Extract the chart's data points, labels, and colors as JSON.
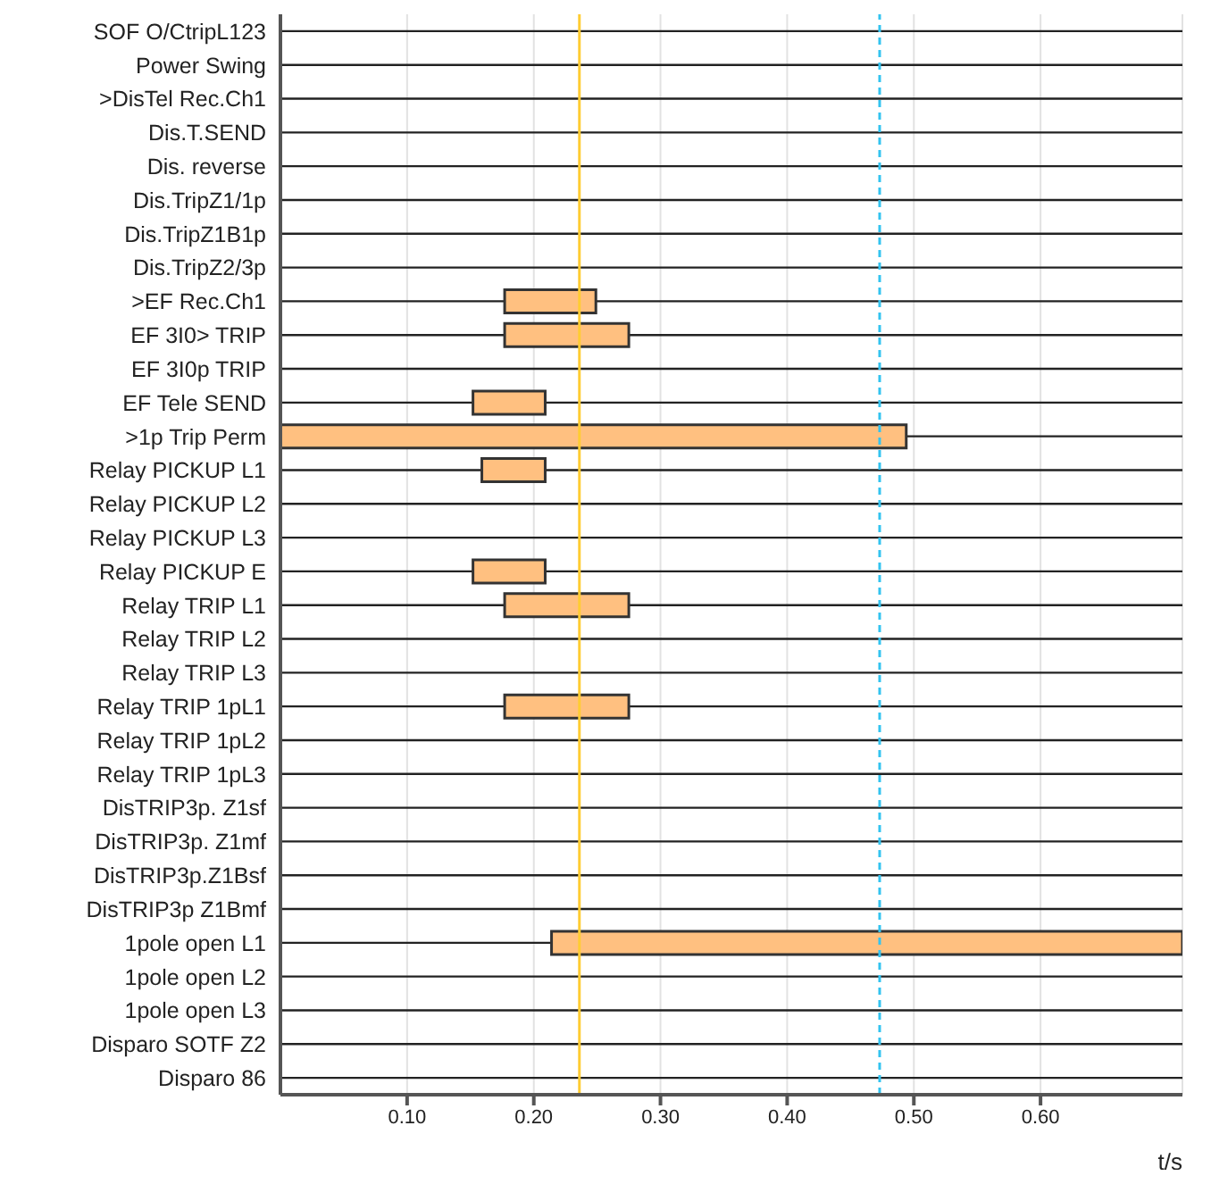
{
  "chart_data": {
    "type": "bar",
    "orientation": "horizontal",
    "xlabel": "t/s",
    "categories": [
      "SOF O/CtripL123",
      "Power Swing",
      ">DisTel Rec.Ch1",
      "Dis.T.SEND",
      "Dis. reverse",
      "Dis.TripZ1/1p",
      "Dis.TripZ1B1p",
      "Dis.TripZ2/3p",
      ">EF Rec.Ch1",
      "EF 3I0> TRIP",
      "EF 3I0p TRIP",
      "EF Tele SEND",
      ">1p Trip Perm",
      "Relay PICKUP L1",
      "Relay PICKUP L2",
      "Relay PICKUP L3",
      "Relay PICKUP E",
      "Relay TRIP L1",
      "Relay TRIP L2",
      "Relay TRIP L3",
      "Relay TRIP 1pL1",
      "Relay TRIP 1pL2",
      "Relay TRIP 1pL3",
      "DisTRIP3p. Z1sf",
      "DisTRIP3p. Z1mf",
      "DisTRIP3p.Z1Bsf",
      "DisTRIP3p Z1Bmf",
      "1pole open L1",
      "1pole open L2",
      "1pole open L3",
      "Disparo SOTF Z2",
      "Disparo 86"
    ],
    "base": [
      null,
      null,
      null,
      null,
      null,
      null,
      null,
      null,
      0.177,
      0.177,
      null,
      0.152,
      0,
      0.159,
      null,
      null,
      0.152,
      0.177,
      null,
      null,
      0.177,
      null,
      null,
      null,
      null,
      null,
      null,
      0.214,
      null,
      null,
      null,
      null
    ],
    "values": [
      null,
      null,
      null,
      null,
      null,
      null,
      null,
      null,
      0.072,
      0.098,
      null,
      0.057,
      0.494,
      0.05,
      null,
      null,
      0.057,
      0.098,
      null,
      null,
      0.098,
      null,
      null,
      null,
      null,
      null,
      null,
      0.498,
      null,
      null,
      null,
      null
    ],
    "color": "#ffc080",
    "xlim": [
      0,
      0.712
    ],
    "xticks": [
      {
        "value": 0.1,
        "label": "0.10"
      },
      {
        "value": 0.2,
        "label": "0.20"
      },
      {
        "value": 0.3,
        "label": "0.30"
      },
      {
        "value": 0.4,
        "label": "0.40"
      },
      {
        "value": 0.5,
        "label": "0.50"
      },
      {
        "value": 0.6,
        "label": "0.60"
      }
    ],
    "ref_lines": [
      {
        "axis": "x",
        "value": 0.236,
        "color": "#ffcc33",
        "line_style": "solid"
      },
      {
        "axis": "x",
        "value": 0.473,
        "color": "#33c3f0",
        "line_style": "dashed"
      }
    ],
    "grid": true
  }
}
